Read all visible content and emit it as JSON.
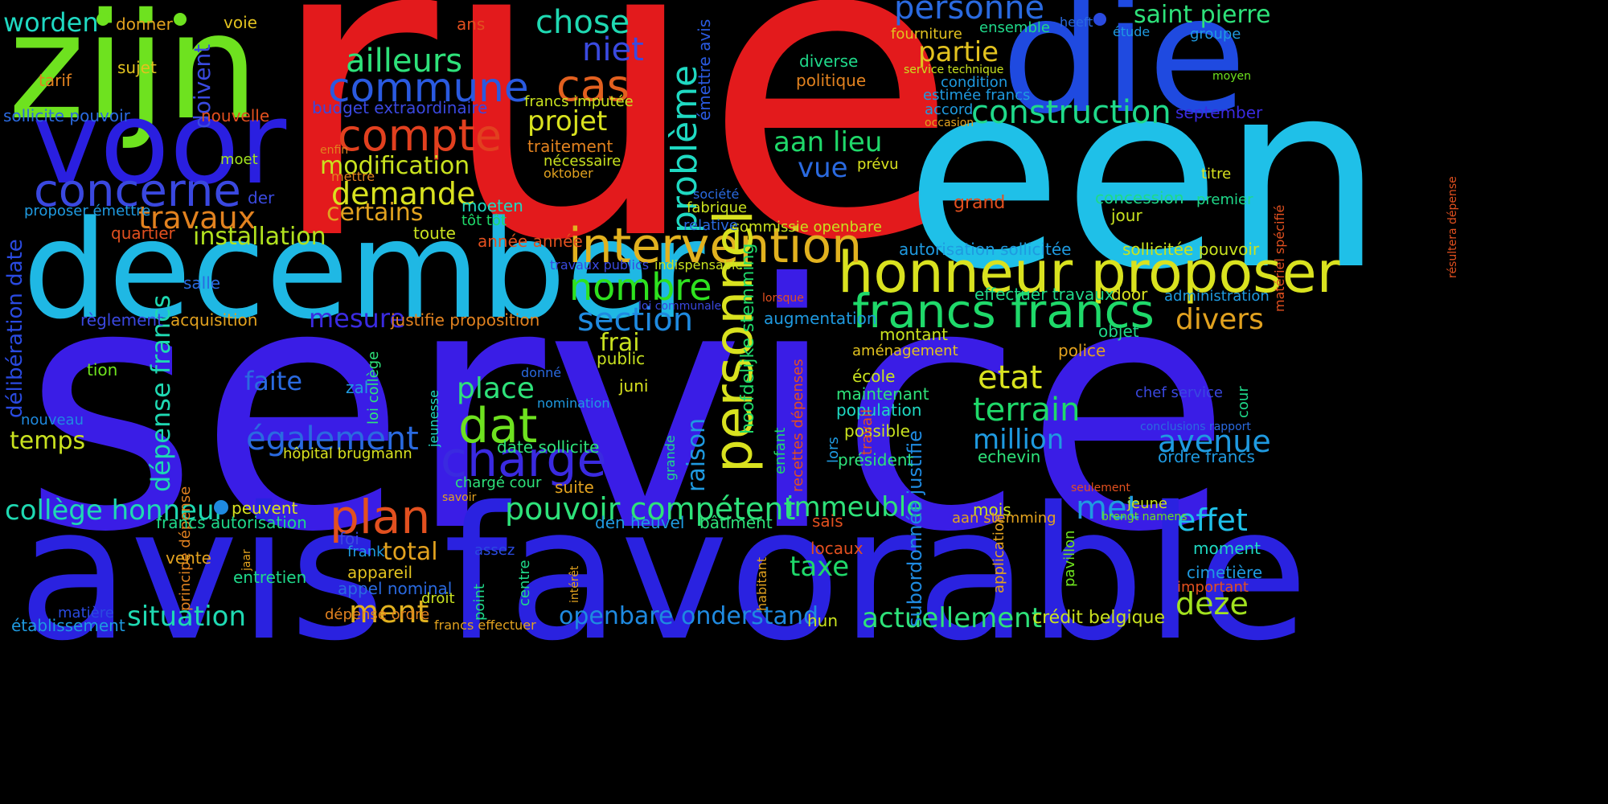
{
  "words": [
    {
      "text": "rue",
      "color": "#e31a1c"
    },
    {
      "text": "service",
      "color": "#3a1de6"
    },
    {
      "text": "avis favorable",
      "color": "#2a22e0"
    },
    {
      "text": "een",
      "color": "#1fc0e8"
    },
    {
      "text": "december",
      "color": "#1fb8e4"
    },
    {
      "text": "die",
      "color": "#1f4ae0"
    },
    {
      "text": "zijn",
      "color": "#6ee21f"
    },
    {
      "text": "voor",
      "color": "#2a1fe0"
    },
    {
      "text": "honneur proposer",
      "color": "#d9e21f"
    },
    {
      "text": "francs francs",
      "color": "#1fd96a"
    },
    {
      "text": "intervention",
      "color": "#e2b21f"
    },
    {
      "text": "personnel",
      "color": "#d9e21f"
    },
    {
      "text": "concerne",
      "color": "#3a48e0"
    },
    {
      "text": "commune",
      "color": "#2a5ae0"
    },
    {
      "text": "charge",
      "color": "#3a2ae0"
    },
    {
      "text": "plan",
      "color": "#e2501f"
    },
    {
      "text": "compte",
      "color": "#e2401f"
    },
    {
      "text": "cas",
      "color": "#e2601f"
    },
    {
      "text": "dat",
      "color": "#6ee21f"
    },
    {
      "text": "nombre",
      "color": "#2ee21f"
    },
    {
      "text": "construction",
      "color": "#1fd98a"
    },
    {
      "text": "personne",
      "color": "#2a6ae0"
    },
    {
      "text": "chose",
      "color": "#1fd9b2"
    },
    {
      "text": "ailleurs",
      "color": "#2ee27a"
    },
    {
      "text": "niet",
      "color": "#3a4ae0"
    },
    {
      "text": "projet",
      "color": "#d9e21f"
    },
    {
      "text": "demande",
      "color": "#d9e21f"
    },
    {
      "text": "modification",
      "color": "#c9e21f"
    },
    {
      "text": "certains",
      "color": "#e2a21f"
    },
    {
      "text": "travaux",
      "color": "#e2821f"
    },
    {
      "text": "installation",
      "color": "#b2e21f"
    },
    {
      "text": "problème",
      "color": "#1fd9c2"
    },
    {
      "text": "partie",
      "color": "#e2c21f"
    },
    {
      "text": "saint pierre",
      "color": "#2ee27a"
    },
    {
      "text": "aan lieu",
      "color": "#1fd96a"
    },
    {
      "text": "vue",
      "color": "#2a6ae0"
    },
    {
      "text": "section",
      "color": "#1f8ae0"
    },
    {
      "text": "mesure",
      "color": "#3a2ae0"
    },
    {
      "text": "pouvoir compétent",
      "color": "#2ee27a"
    },
    {
      "text": "collège honneur",
      "color": "#1fd9b2"
    },
    {
      "text": "situation",
      "color": "#1fd9b2"
    },
    {
      "text": "openbare onderstand",
      "color": "#1f8ae0"
    },
    {
      "text": "actuellement",
      "color": "#2ee27a"
    },
    {
      "text": "immeuble",
      "color": "#2ee27a"
    },
    {
      "text": "taxe",
      "color": "#1fd96a"
    },
    {
      "text": "etat",
      "color": "#d9e21f"
    },
    {
      "text": "terrain",
      "color": "#1fd96a"
    },
    {
      "text": "million",
      "color": "#1f9ae0"
    },
    {
      "text": "avenue",
      "color": "#1f9ae0"
    },
    {
      "text": "effet",
      "color": "#1fc0e8"
    },
    {
      "text": "met",
      "color": "#1f9ae0"
    },
    {
      "text": "deze",
      "color": "#a2e21f"
    },
    {
      "text": "divers",
      "color": "#e2a21f"
    },
    {
      "text": "également",
      "color": "#2a6ae0"
    },
    {
      "text": "place",
      "color": "#2ee27a"
    },
    {
      "text": "ment",
      "color": "#e2b21f"
    },
    {
      "text": "total",
      "color": "#e2a21f"
    },
    {
      "text": "faite",
      "color": "#2a6ae0"
    },
    {
      "text": "temps",
      "color": "#c9e21f"
    },
    {
      "text": "worden",
      "color": "#1fd9c2"
    },
    {
      "text": "frai",
      "color": "#c9e21f"
    },
    {
      "text": "dépense francs",
      "color": "#1fd9b2"
    },
    {
      "text": "raison",
      "color": "#1f9ae0"
    },
    {
      "text": "hoofdelijke stemming",
      "color": "#1fd96a"
    },
    {
      "text": "doivent",
      "color": "#3a4ae0"
    },
    {
      "text": "délibération date",
      "color": "#2a4ae0"
    },
    {
      "text": "subordonnée justifie",
      "color": "#1f8ae0"
    },
    {
      "text": "émettre avis",
      "color": "#2a5ae0"
    },
    {
      "text": "donner",
      "color": "#e2a21f"
    },
    {
      "text": "voie",
      "color": "#e2c21f"
    },
    {
      "text": "ans",
      "color": "#e2501f"
    },
    {
      "text": "sujet",
      "color": "#e2c21f"
    },
    {
      "text": "tarif",
      "color": "#e2821f"
    },
    {
      "text": "sollicite pouvoir",
      "color": "#2a6ae0"
    },
    {
      "text": "nouvelle",
      "color": "#e2501f"
    },
    {
      "text": "budget extraordinaire",
      "color": "#3a48e0"
    },
    {
      "text": "francs imputée",
      "color": "#c9e21f"
    },
    {
      "text": "moet",
      "color": "#a2e21f"
    },
    {
      "text": "enfin",
      "color": "#e2821f"
    },
    {
      "text": "mettre",
      "color": "#e2821f"
    },
    {
      "text": "traitement",
      "color": "#e2821f"
    },
    {
      "text": "nécessaire",
      "color": "#c9e21f"
    },
    {
      "text": "oktober",
      "color": "#e2a21f"
    },
    {
      "text": "der",
      "color": "#3a4ae0"
    },
    {
      "text": "proposer émettre",
      "color": "#1f9ae0"
    },
    {
      "text": "moeten",
      "color": "#1fd9c2"
    },
    {
      "text": "tôt tôt",
      "color": "#1fd96a"
    },
    {
      "text": "quartier",
      "color": "#e2501f"
    },
    {
      "text": "toute",
      "color": "#c9e21f"
    },
    {
      "text": "année année",
      "color": "#e2501f"
    },
    {
      "text": "salle",
      "color": "#2a6ae0"
    },
    {
      "text": "travaux publics",
      "color": "#3a4ae0"
    },
    {
      "text": "indispensable",
      "color": "#c9e21f"
    },
    {
      "text": "règlement",
      "color": "#3a48e0"
    },
    {
      "text": "acquisition",
      "color": "#e2a21f"
    },
    {
      "text": "justifie proposition",
      "color": "#e2821f"
    },
    {
      "text": "loi communale",
      "color": "#3a48e0"
    },
    {
      "text": "public",
      "color": "#c9e21f"
    },
    {
      "text": "tion",
      "color": "#6ee21f"
    },
    {
      "text": "donné",
      "color": "#2a6ae0"
    },
    {
      "text": "nomination",
      "color": "#1f9ae0"
    },
    {
      "text": "juni",
      "color": "#d9e21f"
    },
    {
      "text": "zal",
      "color": "#1f9ae0"
    },
    {
      "text": "loi collège",
      "color": "#2ee27a"
    },
    {
      "text": "principe dépense",
      "color": "#e2821f"
    },
    {
      "text": "jeunesse",
      "color": "#1fd9c2"
    },
    {
      "text": "date sollicite",
      "color": "#2ee27a"
    },
    {
      "text": "grande",
      "color": "#1fd98a"
    },
    {
      "text": "hôpital brugmann",
      "color": "#d9e21f"
    },
    {
      "text": "nouveau",
      "color": "#1f8ae0"
    },
    {
      "text": "suite",
      "color": "#e2a21f"
    },
    {
      "text": "chargé cour",
      "color": "#2ee27a"
    },
    {
      "text": "savoir",
      "color": "#e2a21f"
    },
    {
      "text": "peuvent",
      "color": "#d9e21f"
    },
    {
      "text": "francs autorisation",
      "color": "#1fd98a"
    },
    {
      "text": "foi",
      "color": "#3a48e0"
    },
    {
      "text": "frank",
      "color": "#1f9ae0"
    },
    {
      "text": "assez",
      "color": "#2a4ae0"
    },
    {
      "text": "den heuvel",
      "color": "#1f9ae0"
    },
    {
      "text": "vente",
      "color": "#e2a21f"
    },
    {
      "text": "jaar",
      "color": "#e2a21f"
    },
    {
      "text": "entretien",
      "color": "#1fd98a"
    },
    {
      "text": "appareil",
      "color": "#e2c21f"
    },
    {
      "text": "appel nominal",
      "color": "#2a6ae0"
    },
    {
      "text": "droit",
      "color": "#c9e21f"
    },
    {
      "text": "centre",
      "color": "#1fd98a"
    },
    {
      "text": "point",
      "color": "#1fd98a"
    },
    {
      "text": "intérêt",
      "color": "#e2a21f"
    },
    {
      "text": "matière",
      "color": "#2a4ae0"
    },
    {
      "text": "établissement",
      "color": "#1f9ae0"
    },
    {
      "text": "dépense ordre",
      "color": "#e2821f"
    },
    {
      "text": "francs effectuer",
      "color": "#e2a21f"
    },
    {
      "text": "bâtiment",
      "color": "#2ee27a"
    },
    {
      "text": "sais",
      "color": "#e2501f"
    },
    {
      "text": "locaux",
      "color": "#e2501f"
    },
    {
      "text": "habitant",
      "color": "#e2a21f"
    },
    {
      "text": "hun",
      "color": "#c9e21f"
    },
    {
      "text": "président",
      "color": "#2ee27a"
    },
    {
      "text": "enfant",
      "color": "#1fd96a"
    },
    {
      "text": "recettes dépenses",
      "color": "#e2501f"
    },
    {
      "text": "possible",
      "color": "#c9e21f"
    },
    {
      "text": "population",
      "color": "#1fd9c2"
    },
    {
      "text": "maintenant",
      "color": "#2ee27a"
    },
    {
      "text": "école",
      "color": "#c9e21f"
    },
    {
      "text": "echevin",
      "color": "#2ee27a"
    },
    {
      "text": "lors",
      "color": "#1f9ae0"
    },
    {
      "text": "travail",
      "color": "#e2501f"
    },
    {
      "text": "aménagement",
      "color": "#e2c21f"
    },
    {
      "text": "montant",
      "color": "#c9e21f"
    },
    {
      "text": "augmentation",
      "color": "#1f9ae0"
    },
    {
      "text": "lorsque",
      "color": "#e2501f"
    },
    {
      "text": "effectuer travaux",
      "color": "#1fd98a"
    },
    {
      "text": "autorisation sollicitée",
      "color": "#1f9ae0"
    },
    {
      "text": "sollicitée pouvoir",
      "color": "#c9e21f"
    },
    {
      "text": "commissie openbare",
      "color": "#c9e21f"
    },
    {
      "text": "relative",
      "color": "#2a6ae0"
    },
    {
      "text": "fabrique",
      "color": "#c9e21f"
    },
    {
      "text": "société",
      "color": "#2a6ae0"
    },
    {
      "text": "prévu",
      "color": "#d9e21f"
    },
    {
      "text": "diverse",
      "color": "#1fd98a"
    },
    {
      "text": "politique",
      "color": "#e2821f"
    },
    {
      "text": "grand",
      "color": "#e2501f"
    },
    {
      "text": "concession",
      "color": "#1fd98a"
    },
    {
      "text": "jour",
      "color": "#c9e21f"
    },
    {
      "text": "matériel spécifié",
      "color": "#e2501f"
    },
    {
      "text": "résultera dépense",
      "color": "#e2501f"
    },
    {
      "text": "titre",
      "color": "#d9e21f"
    },
    {
      "text": "premier",
      "color": "#1fd98a"
    },
    {
      "text": "occasion",
      "color": "#e2a21f"
    },
    {
      "text": "accord",
      "color": "#1f9ae0"
    },
    {
      "text": "estimée francs",
      "color": "#1f9ae0"
    },
    {
      "text": "condition",
      "color": "#1f9ae0"
    },
    {
      "text": "service technique",
      "color": "#c9e21f"
    },
    {
      "text": "fourniture",
      "color": "#e2c21f"
    },
    {
      "text": "ensemble",
      "color": "#1fd98a"
    },
    {
      "text": "heeft",
      "color": "#2a6ae0"
    },
    {
      "text": "étude",
      "color": "#1f9ae0"
    },
    {
      "text": "groupe",
      "color": "#1f9ae0"
    },
    {
      "text": "moyen",
      "color": "#6ee21f"
    },
    {
      "text": "september",
      "color": "#3a2ae0"
    },
    {
      "text": "door",
      "color": "#d9e21f"
    },
    {
      "text": "administration",
      "color": "#1f9ae0"
    },
    {
      "text": "objet",
      "color": "#1fd98a"
    },
    {
      "text": "police",
      "color": "#e2a21f"
    },
    {
      "text": "cour",
      "color": "#1fd98a"
    },
    {
      "text": "chef service",
      "color": "#3a48e0"
    },
    {
      "text": "conclusions rapport",
      "color": "#2a6ae0"
    },
    {
      "text": "ordre francs",
      "color": "#1f9ae0"
    },
    {
      "text": "seulement",
      "color": "#e2501f"
    },
    {
      "text": "jeune",
      "color": "#c9e21f"
    },
    {
      "text": "brengt namens",
      "color": "#6ee21f"
    },
    {
      "text": "mois",
      "color": "#c9e21f"
    },
    {
      "text": "aan stemming",
      "color": "#e2a21f"
    },
    {
      "text": "application",
      "color": "#e2a21f"
    },
    {
      "text": "pavillon",
      "color": "#6ee21f"
    },
    {
      "text": "moment",
      "color": "#1fd9c2"
    },
    {
      "text": "cimetière",
      "color": "#1f9ae0"
    },
    {
      "text": "important",
      "color": "#e2501f"
    },
    {
      "text": "crédit belgique",
      "color": "#c9e21f"
    }
  ],
  "dots": [
    {
      "color": "#6ee21f"
    },
    {
      "color": "#6ee21f"
    },
    {
      "color": "#2a4ae0"
    },
    {
      "color": "#1f8ae0"
    }
  ]
}
